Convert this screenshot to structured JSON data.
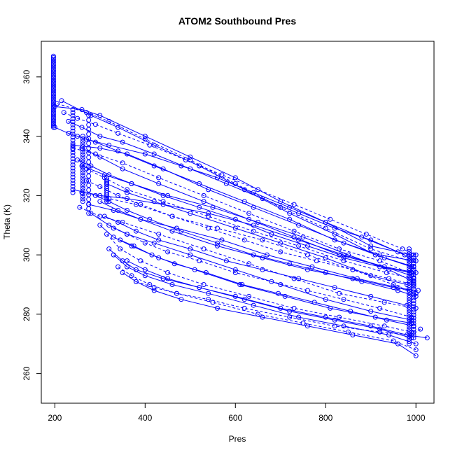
{
  "chart_data": {
    "type": "scatter",
    "title": "ATOM2 Southbound Pres",
    "xlabel": "Pres",
    "ylabel": "Theta (K)",
    "xlim": [
      170,
      1040
    ],
    "ylim": [
      250,
      372
    ],
    "xticks": [
      200,
      400,
      600,
      800,
      1000
    ],
    "yticks": [
      260,
      280,
      300,
      320,
      340,
      360
    ],
    "grid": false,
    "legend": "none",
    "marker": "open-circle",
    "line_style": "solid and dashed",
    "series_color": "#0000ff",
    "series": [
      {
        "x": [
          200,
          260,
          300,
          400,
          500,
          600,
          700,
          800,
          900,
          990
        ],
        "y": [
          350,
          349,
          347,
          340,
          333,
          326,
          318,
          311,
          303,
          300
        ]
      },
      {
        "x": [
          205,
          270,
          320,
          400,
          500,
          600,
          700,
          800,
          900,
          985
        ],
        "y": [
          351,
          348,
          345,
          339,
          332,
          324,
          316,
          309,
          302,
          298
        ]
      },
      {
        "x": [
          215,
          280,
          340,
          420,
          520,
          620,
          720,
          820,
          910,
          995
        ],
        "y": [
          352,
          347,
          343,
          337,
          330,
          322,
          314,
          307,
          300,
          296
        ]
      },
      {
        "x": [
          240,
          300,
          360,
          440,
          540,
          640,
          740,
          840,
          930,
          990
        ],
        "y": [
          337,
          336,
          334,
          329,
          322,
          316,
          310,
          304,
          299,
          296
        ]
      },
      {
        "x": [
          240,
          290,
          350,
          430,
          530,
          630,
          730,
          830,
          920,
          985
        ],
        "y": [
          336,
          334,
          331,
          326,
          320,
          314,
          308,
          302,
          298,
          294
        ]
      },
      {
        "x": [
          260,
          310,
          370,
          450,
          550,
          650,
          750,
          850,
          940,
          995
        ],
        "y": [
          330,
          327,
          324,
          320,
          316,
          311,
          306,
          300,
          295,
          291
        ]
      },
      {
        "x": [
          240,
          300,
          360,
          440,
          540,
          640,
          740,
          840,
          930,
          990
        ],
        "y": [
          322,
          320,
          319,
          317,
          314,
          310,
          305,
          300,
          296,
          293
        ]
      },
      {
        "x": [
          260,
          320,
          380,
          460,
          560,
          660,
          760,
          860,
          950,
          1000
        ],
        "y": [
          321,
          319,
          317,
          313,
          309,
          305,
          300,
          295,
          290,
          287
        ]
      },
      {
        "x": [
          275,
          330,
          390,
          470,
          570,
          670,
          770,
          870,
          960,
          1000
        ],
        "y": [
          317,
          315,
          312,
          309,
          305,
          300,
          296,
          292,
          289,
          287
        ]
      },
      {
        "x": [
          315,
          360,
          420,
          500,
          600,
          700,
          800,
          900,
          980
        ],
        "y": [
          324,
          321,
          318,
          314,
          309,
          304,
          299,
          293,
          290
        ]
      },
      {
        "x": [
          255,
          300,
          350,
          430,
          530,
          630,
          730,
          830,
          930,
          1000
        ],
        "y": [
          316,
          313,
          311,
          307,
          302,
          297,
          292,
          287,
          284,
          282
        ]
      },
      {
        "x": [
          280,
          320,
          360,
          420,
          500,
          600,
          700,
          800,
          900,
          990
        ],
        "y": [
          314,
          310,
          307,
          304,
          300,
          295,
          290,
          285,
          281,
          278
        ]
      },
      {
        "x": [
          300,
          330,
          370,
          430,
          510,
          610,
          710,
          810,
          910,
          990
        ],
        "y": [
          310,
          306,
          303,
          299,
          295,
          290,
          286,
          282,
          279,
          277
        ]
      },
      {
        "x": [
          315,
          345,
          390,
          450,
          530,
          630,
          730,
          830,
          930,
          990
        ],
        "y": [
          307,
          302,
          298,
          294,
          290,
          286,
          282,
          279,
          276,
          274
        ]
      },
      {
        "x": [
          320,
          350,
          380,
          440,
          520,
          620,
          720,
          820,
          920,
          990
        ],
        "y": [
          302,
          298,
          295,
          292,
          289,
          285,
          281,
          278,
          275,
          272
        ]
      },
      {
        "x": [
          330,
          360,
          400,
          460,
          540,
          640,
          740,
          840,
          940,
          1000
        ],
        "y": [
          300,
          296,
          293,
          290,
          287,
          283,
          279,
          276,
          273,
          270
        ]
      },
      {
        "x": [
          340,
          370,
          410,
          470,
          550,
          650,
          750,
          850,
          950,
          1000
        ],
        "y": [
          296,
          293,
          290,
          287,
          284,
          280,
          277,
          274,
          271,
          268
        ]
      },
      {
        "x": [
          350,
          380,
          420,
          480,
          560,
          660,
          760,
          860,
          960,
          1000
        ],
        "y": [
          294,
          291,
          288,
          285,
          282,
          279,
          276,
          273,
          270,
          266
        ]
      },
      {
        "x": [
          360,
          400,
          450,
          520,
          600,
          700,
          800,
          900,
          980,
          1025
        ],
        "y": [
          298,
          295,
          292,
          289,
          286,
          282,
          279,
          276,
          273,
          272
        ]
      },
      {
        "x": [
          380,
          420,
          470,
          540,
          620,
          720,
          820,
          920,
          990,
          1010
        ],
        "y": [
          291,
          289,
          287,
          285,
          282,
          279,
          276,
          274,
          273,
          275
        ]
      },
      {
        "x": [
          250,
          290,
          340,
          420,
          520,
          620,
          720,
          820,
          920,
          995
        ],
        "y": [
          340,
          338,
          335,
          330,
          324,
          318,
          312,
          305,
          300,
          298
        ]
      },
      {
        "x": [
          260,
          300,
          350,
          430,
          530,
          630,
          730,
          830,
          930,
          1000
        ],
        "y": [
          336,
          333,
          329,
          324,
          318,
          312,
          306,
          300,
          296,
          294
        ]
      },
      {
        "x": [
          270,
          310,
          360,
          440,
          540,
          640,
          740,
          840,
          935,
          995
        ],
        "y": [
          329,
          326,
          322,
          318,
          313,
          308,
          303,
          298,
          294,
          292
        ]
      },
      {
        "x": [
          300,
          340,
          390,
          460,
          560,
          660,
          760,
          860,
          950,
          1005
        ],
        "y": [
          318,
          315,
          312,
          308,
          303,
          299,
          295,
          292,
          289,
          288
        ]
      },
      {
        "x": [
          200,
          230,
          270,
          320,
          400,
          480,
          560,
          640,
          720,
          800,
          880,
          960,
          1000
        ],
        "y": [
          343,
          341,
          339,
          337,
          334,
          330,
          326,
          321,
          316,
          311,
          306,
          301,
          298
        ]
      },
      {
        "x": [
          220,
          250,
          290,
          340,
          410,
          490,
          570,
          650,
          730,
          810,
          890,
          970,
          1000
        ],
        "y": [
          348,
          346,
          344,
          341,
          337,
          332,
          327,
          322,
          317,
          312,
          307,
          302,
          300
        ]
      },
      {
        "x": [
          230,
          260,
          300,
          350,
          420,
          500,
          580,
          660,
          740,
          820,
          900,
          975
        ],
        "y": [
          345,
          343,
          340,
          338,
          334,
          329,
          324,
          319,
          314,
          309,
          305,
          300
        ]
      },
      {
        "x": [
          250,
          280,
          320,
          370,
          440,
          520,
          600,
          680,
          760,
          840,
          920,
          990
        ],
        "y": [
          332,
          330,
          327,
          324,
          320,
          316,
          312,
          307,
          303,
          299,
          296,
          294
        ]
      },
      {
        "x": [
          270,
          300,
          340,
          390,
          460,
          540,
          620,
          700,
          780,
          860,
          940,
          995
        ],
        "y": [
          325,
          323,
          320,
          317,
          313,
          309,
          305,
          301,
          298,
          295,
          292,
          290
        ]
      },
      {
        "x": [
          290,
          320,
          360,
          410,
          480,
          560,
          640,
          720,
          800,
          880,
          960,
          1000
        ],
        "y": [
          320,
          318,
          315,
          312,
          308,
          304,
          300,
          297,
          294,
          291,
          288,
          286
        ]
      },
      {
        "x": [
          310,
          340,
          380,
          430,
          500,
          580,
          660,
          740,
          820,
          900,
          980
        ],
        "y": [
          313,
          311,
          308,
          305,
          302,
          298,
          295,
          292,
          289,
          286,
          283
        ]
      },
      {
        "x": [
          330,
          360,
          400,
          450,
          520,
          600,
          680,
          760,
          840,
          920,
          990
        ],
        "y": [
          309,
          307,
          304,
          301,
          298,
          294,
          291,
          288,
          285,
          282,
          279
        ]
      },
      {
        "x": [
          345,
          375,
          415,
          465,
          535,
          615,
          695,
          775,
          855,
          935,
          995
        ],
        "y": [
          305,
          303,
          300,
          297,
          294,
          290,
          287,
          284,
          281,
          278,
          276
        ]
      }
    ],
    "clusters": [
      {
        "x": 197,
        "ymin": 343,
        "ymax": 367,
        "n": 46
      },
      {
        "x": 240,
        "ymin": 321,
        "ymax": 349,
        "n": 28
      },
      {
        "x": 262,
        "ymin": 318,
        "ymax": 340,
        "n": 26
      },
      {
        "x": 275,
        "ymin": 314,
        "ymax": 347,
        "n": 22
      },
      {
        "x": 315,
        "ymin": 318,
        "ymax": 326,
        "n": 12
      },
      {
        "x": 985,
        "ymin": 270,
        "ymax": 302,
        "n": 40
      },
      {
        "x": 995,
        "ymin": 272,
        "ymax": 300,
        "n": 30
      }
    ]
  }
}
